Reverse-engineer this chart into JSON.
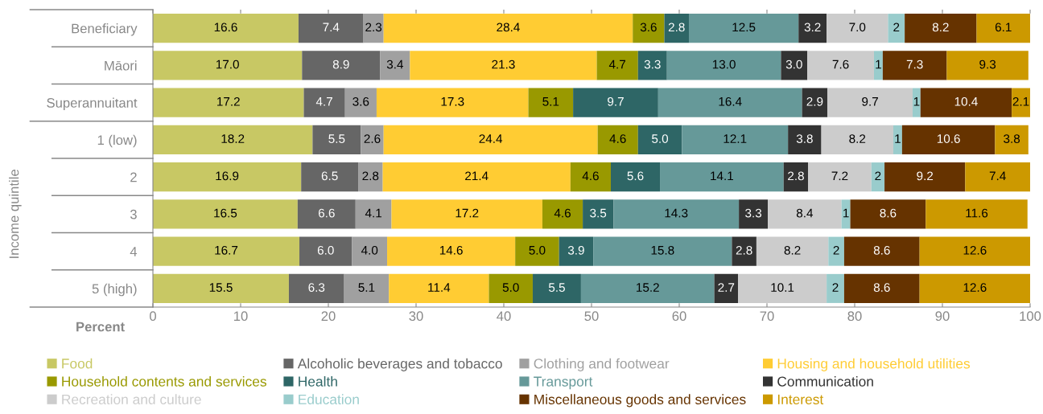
{
  "chart_data": {
    "type": "bar",
    "orientation": "horizontal",
    "stacked": true,
    "grid": false,
    "legend": "bottom",
    "xlabel": "Percent",
    "ylabel": "Income quintile",
    "categories": [
      "Beneficiary",
      "Māori",
      "Superannuitant",
      "1 (low)",
      "2",
      "3",
      "4",
      "5 (high)"
    ],
    "xlim": [
      0,
      100
    ],
    "xticks": [
      0,
      10,
      20,
      30,
      40,
      50,
      60,
      70,
      80,
      90,
      100
    ],
    "series": [
      {
        "name": "Food",
        "color": "#c8c864",
        "values": [
          16.6,
          17.0,
          17.2,
          18.2,
          16.9,
          16.5,
          16.7,
          15.5
        ],
        "value_labels": [
          "16.6",
          "17.0",
          "17.2",
          "18.2",
          "16.9",
          "16.5",
          "16.7",
          "15.5"
        ]
      },
      {
        "name": "Alcoholic beverages and tobacco",
        "color": "#666666",
        "values": [
          7.4,
          8.9,
          4.7,
          5.5,
          6.5,
          6.6,
          6.0,
          6.3
        ],
        "value_labels": [
          "7.4",
          "8.9",
          "4.7",
          "5.5",
          "6.5",
          "6.6",
          "6.0",
          "6.3"
        ]
      },
      {
        "name": "Clothing and footwear",
        "color": "#a0a0a0",
        "values": [
          2.3,
          3.4,
          3.6,
          2.6,
          2.8,
          4.1,
          4.0,
          5.1
        ],
        "value_labels": [
          "2.3",
          "3.4",
          "3.6",
          "2.6",
          "2.8",
          "4.1",
          "4.0",
          "5.1"
        ]
      },
      {
        "name": "Housing and household utilities",
        "color": "#ffcc33",
        "values": [
          28.4,
          21.3,
          17.3,
          24.4,
          21.4,
          17.2,
          14.6,
          11.4
        ],
        "value_labels": [
          "28.4",
          "21.3",
          "17.3",
          "24.4",
          "21.4",
          "17.2",
          "14.6",
          "11.4"
        ]
      },
      {
        "name": "Household contents and services",
        "color": "#999900",
        "values": [
          3.6,
          4.7,
          5.1,
          4.6,
          4.6,
          4.6,
          5.0,
          5.0
        ],
        "value_labels": [
          "3.6",
          "4.7",
          "5.1",
          "4.6",
          "4.6",
          "4.6",
          "5.0",
          "5.0"
        ]
      },
      {
        "name": "Health",
        "color": "#2e6666",
        "values": [
          2.8,
          3.3,
          9.7,
          5.0,
          5.6,
          3.5,
          3.9,
          5.5
        ],
        "value_labels": [
          "2.8",
          "3.3",
          "9.7",
          "5.0",
          "5.6",
          "3.5",
          "3.9",
          "5.5"
        ]
      },
      {
        "name": "Transport",
        "color": "#669999",
        "values": [
          12.5,
          13.0,
          16.4,
          12.1,
          14.1,
          14.3,
          15.8,
          15.2
        ],
        "value_labels": [
          "12.5",
          "13.0",
          "16.4",
          "12.1",
          "14.1",
          "14.3",
          "15.8",
          "15.2"
        ]
      },
      {
        "name": "Communication",
        "color": "#333333",
        "values": [
          3.2,
          3.0,
          2.9,
          3.8,
          2.8,
          3.3,
          2.8,
          2.7
        ],
        "value_labels": [
          "3.2",
          "3.0",
          "2.9",
          "3.8",
          "2.8",
          "3.3",
          "2.8",
          "2.7"
        ]
      },
      {
        "name": "Recreation and culture",
        "color": "#cccccc",
        "values": [
          7.0,
          7.6,
          9.7,
          8.2,
          7.2,
          8.4,
          8.2,
          10.1
        ],
        "value_labels": [
          "7.0",
          "7.6",
          "9.7",
          "8.2",
          "7.2",
          "8.4",
          "8.2",
          "10.1"
        ]
      },
      {
        "name": "Education",
        "color": "#99cccc",
        "values": [
          1.9,
          1,
          0.9,
          1,
          1.5,
          1,
          1.8,
          2
        ],
        "value_labels": [
          "2",
          "1",
          "1",
          "1",
          "2",
          "1",
          "2",
          "2"
        ]
      },
      {
        "name": "Miscellaneous goods and services",
        "color": "#663300",
        "values": [
          8.2,
          7.3,
          10.4,
          10.6,
          9.2,
          8.6,
          8.6,
          8.6
        ],
        "value_labels": [
          "8.2",
          "7.3",
          "10.4",
          "10.6",
          "9.2",
          "8.6",
          "8.6",
          "8.6"
        ]
      },
      {
        "name": "Interest",
        "color": "#cc9900",
        "values": [
          6.1,
          9.3,
          2.1,
          3.8,
          7.4,
          11.6,
          12.6,
          12.6
        ],
        "value_labels": [
          "6.1",
          "9.3",
          "2.1",
          "3.8",
          "7.4",
          "11.6",
          "12.6",
          "12.6"
        ]
      }
    ]
  }
}
